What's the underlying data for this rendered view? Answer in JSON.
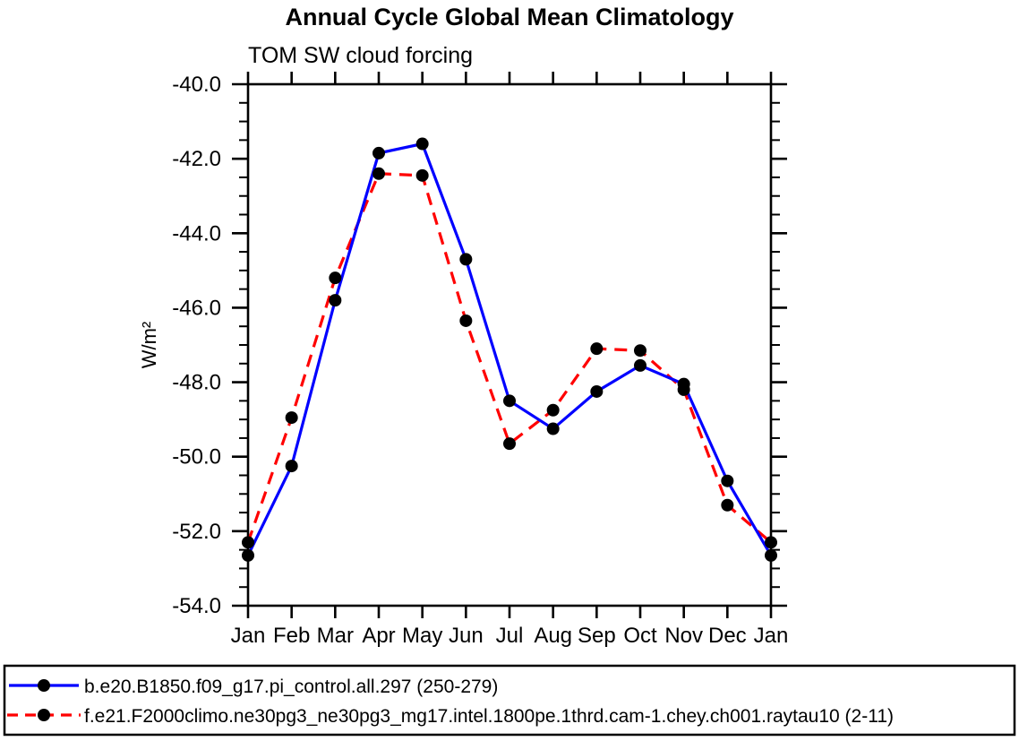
{
  "page": {
    "background": "#ffffff"
  },
  "chart_data": {
    "type": "line",
    "title": "Annual Cycle Global Mean Climatology",
    "subtitle": "TOM SW cloud forcing",
    "ylabel": "W/m²",
    "xlabel": "",
    "x_labels": [
      "Jan",
      "Feb",
      "Mar",
      "Apr",
      "May",
      "Jun",
      "Jul",
      "Aug",
      "Sep",
      "Oct",
      "Nov",
      "Dec",
      "Jan"
    ],
    "ylim": [
      -54.0,
      -40.0
    ],
    "ytick_major_step": 2.0,
    "ytick_minor_step": 0.5,
    "ytick_labels": [
      "-40.0",
      "-42.0",
      "-44.0",
      "-46.0",
      "-48.0",
      "-50.0",
      "-52.0",
      "-54.0"
    ],
    "grid": false,
    "legend_position": "bottom-box",
    "axis_color": "#000000",
    "marker_color": "#000000",
    "marker_shape": "filled-circle",
    "series": [
      {
        "name": "b.e20.B1850.f09_g17.pi_control.all.297 (250-279)",
        "color": "#0000ff",
        "line_style": "solid",
        "values": [
          -52.65,
          -50.25,
          -45.8,
          -41.85,
          -41.6,
          -44.7,
          -48.5,
          -49.25,
          -48.25,
          -47.55,
          -48.05,
          -50.65,
          -52.65
        ]
      },
      {
        "name": "f.e21.F2000climo.ne30pg3_ne30pg3_mg17.intel.1800pe.1thrd.cam-1.chey.ch001.raytau10 (2-11)",
        "color": "#ff0000",
        "line_style": "dashed",
        "values": [
          -52.3,
          -48.95,
          -45.2,
          -42.4,
          -42.45,
          -46.35,
          -49.65,
          -48.75,
          -47.1,
          -47.15,
          -48.2,
          -51.3,
          -52.3
        ]
      }
    ]
  }
}
